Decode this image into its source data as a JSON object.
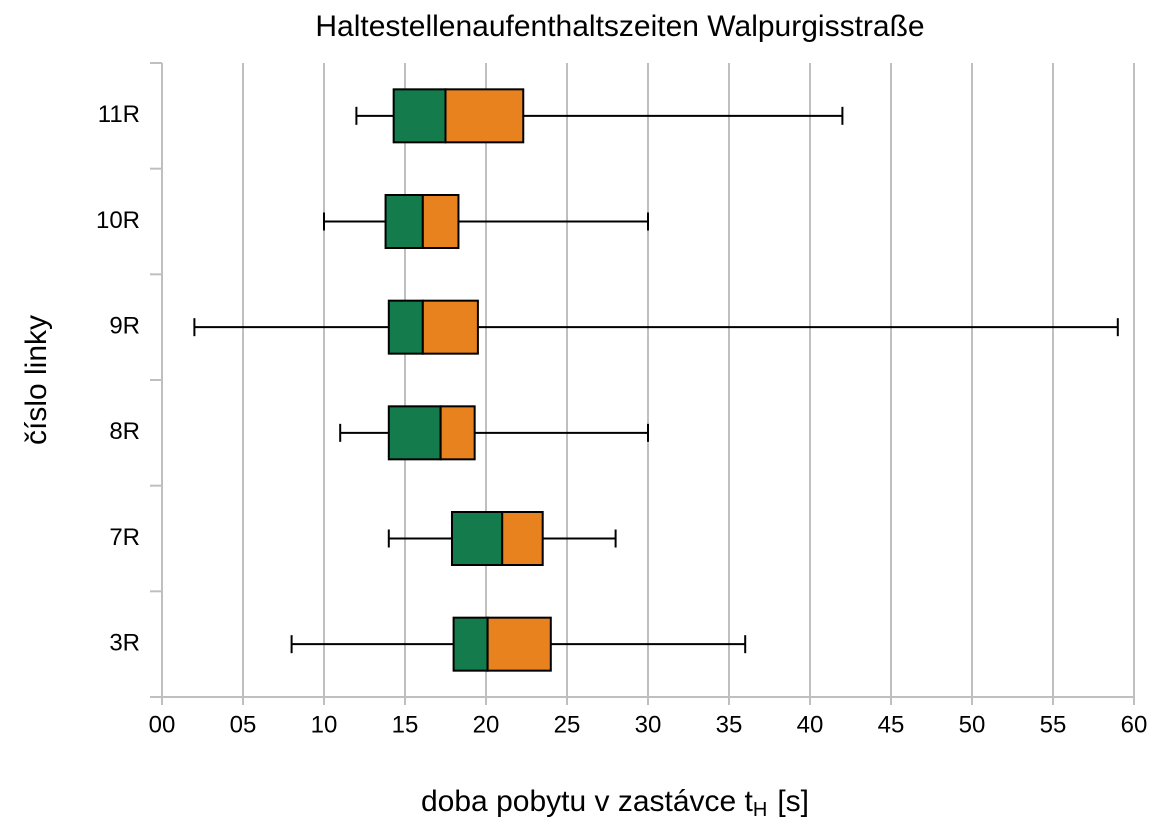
{
  "chart_data": {
    "type": "boxplot",
    "orientation": "horizontal",
    "title": "Haltestellenaufenthaltszeiten Walpurgisstraße",
    "x_label": "doba pobytu v zastávce t",
    "x_label_subscript": "H",
    "x_label_unit": "[s]",
    "y_label": "číslo linky",
    "categories": [
      "11R",
      "10R",
      "9R",
      "8R",
      "7R",
      "3R"
    ],
    "min": [
      12,
      10,
      2,
      11,
      14,
      8
    ],
    "q1": [
      14.3,
      13.8,
      14,
      14,
      17.9,
      18
    ],
    "median": [
      17.5,
      16.1,
      16.1,
      17.2,
      21,
      20.1
    ],
    "q3": [
      22.3,
      18.3,
      19.5,
      19.3,
      23.5,
      24
    ],
    "max": [
      42,
      30,
      59,
      30,
      28,
      36
    ],
    "lower_color": "#137b4c",
    "upper_color": "#e8821e",
    "xlim": [
      0,
      60
    ],
    "xticks": [
      {
        "value": 0,
        "label": "00"
      },
      {
        "value": 5,
        "label": "05"
      },
      10,
      15,
      20,
      25,
      30,
      35,
      40,
      45,
      50,
      55,
      60
    ],
    "grid": true
  }
}
